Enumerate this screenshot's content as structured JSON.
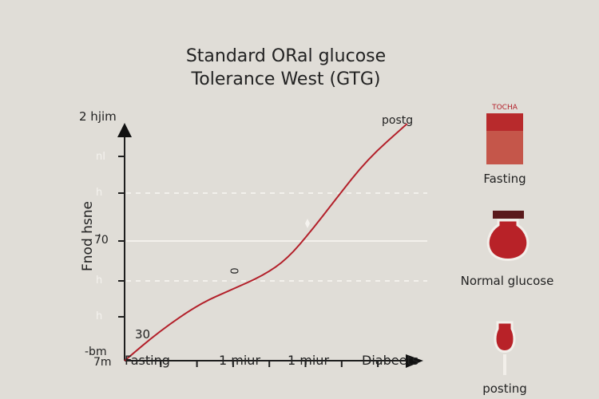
{
  "chart_data": {
    "type": "line",
    "title": [
      "Standard ORal glucose",
      "Tolerance West (GTG)"
    ],
    "ylabel": "Fnod hsne",
    "y_top_label": "2 hjim",
    "y_tick_labels": [
      "nI",
      "h",
      "7́0",
      "h",
      "h",
      "-bm"
    ],
    "y_mid_label": "7́0",
    "y_bottom_label": "7m",
    "x_tick_labels": [
      "Fasting",
      "1 miur",
      "1 miur",
      "Diabeets"
    ],
    "annotations": {
      "start": "30",
      "mid": "0",
      "end": "postg"
    },
    "xlim": [
      0,
      8.3
    ],
    "ylim": [
      0,
      100
    ],
    "grid": "horizontal dashed",
    "series": [
      {
        "name": "glucose",
        "color": "#b3202a",
        "x": [
          0,
          0.97,
          2.07,
          2.96,
          3.84,
          4.5,
          5.17,
          5.83,
          6.71,
          7.81
        ],
        "y": [
          0,
          12.5,
          24,
          30,
          36,
          43,
          55,
          68,
          85,
          100
        ]
      }
    ]
  },
  "legend_panel": {
    "items": [
      {
        "label": "Fasting",
        "tag": "TOCHA",
        "icon": "blood-tube-icon"
      },
      {
        "label": "Normal glucose",
        "icon": "blood-flask-icon"
      },
      {
        "label": "posting",
        "icon": "blood-dropper-icon"
      }
    ],
    "colors": {
      "red": "#b3202a",
      "light_red": "#c5564a",
      "cap": "#5a1a1c"
    }
  }
}
